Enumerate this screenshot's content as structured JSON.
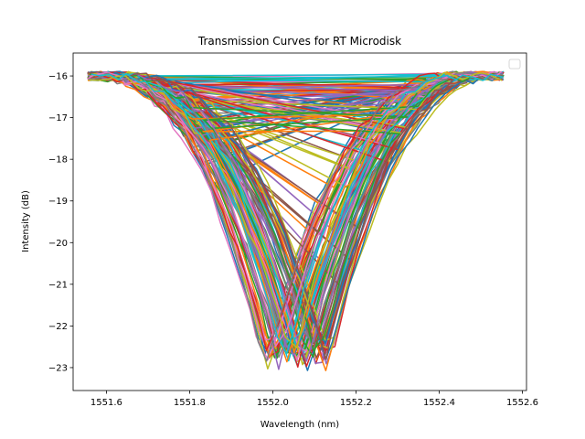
{
  "chart_data": {
    "type": "line",
    "title": "Transmission Curves for RT Microdisk",
    "xlabel": "Wavelength (nm)",
    "ylabel": "Intensity (dB)",
    "xlim": [
      1551.52,
      1552.61
    ],
    "ylim": [
      -23.55,
      -15.45
    ],
    "xticks": [
      1551.6,
      1551.8,
      1552.0,
      1552.2,
      1552.4,
      1552.6
    ],
    "xtick_labels": [
      "1551.6",
      "1551.8",
      "1552.0",
      "1552.2",
      "1552.4",
      "1552.6"
    ],
    "yticks": [
      -16,
      -17,
      -18,
      -19,
      -20,
      -21,
      -22,
      -23
    ],
    "ytick_labels": [
      "−16",
      "−17",
      "−18",
      "−19",
      "−20",
      "−21",
      "−22",
      "−23"
    ],
    "legend": "top-right, empty",
    "colors": [
      "#1f77b4",
      "#ff7f0e",
      "#2ca02c",
      "#d62728",
      "#9467bd",
      "#8c564b",
      "#e377c2",
      "#7f7f7f",
      "#bcbd22",
      "#17becf"
    ],
    "grid": false,
    "series_count": 100,
    "resonance_center_range_nm": [
      1551.98,
      1552.14
    ],
    "resonance_depth_db": -23.0,
    "baseline_db": -16.0,
    "x_range_nm": [
      1551.56,
      1552.55
    ]
  }
}
